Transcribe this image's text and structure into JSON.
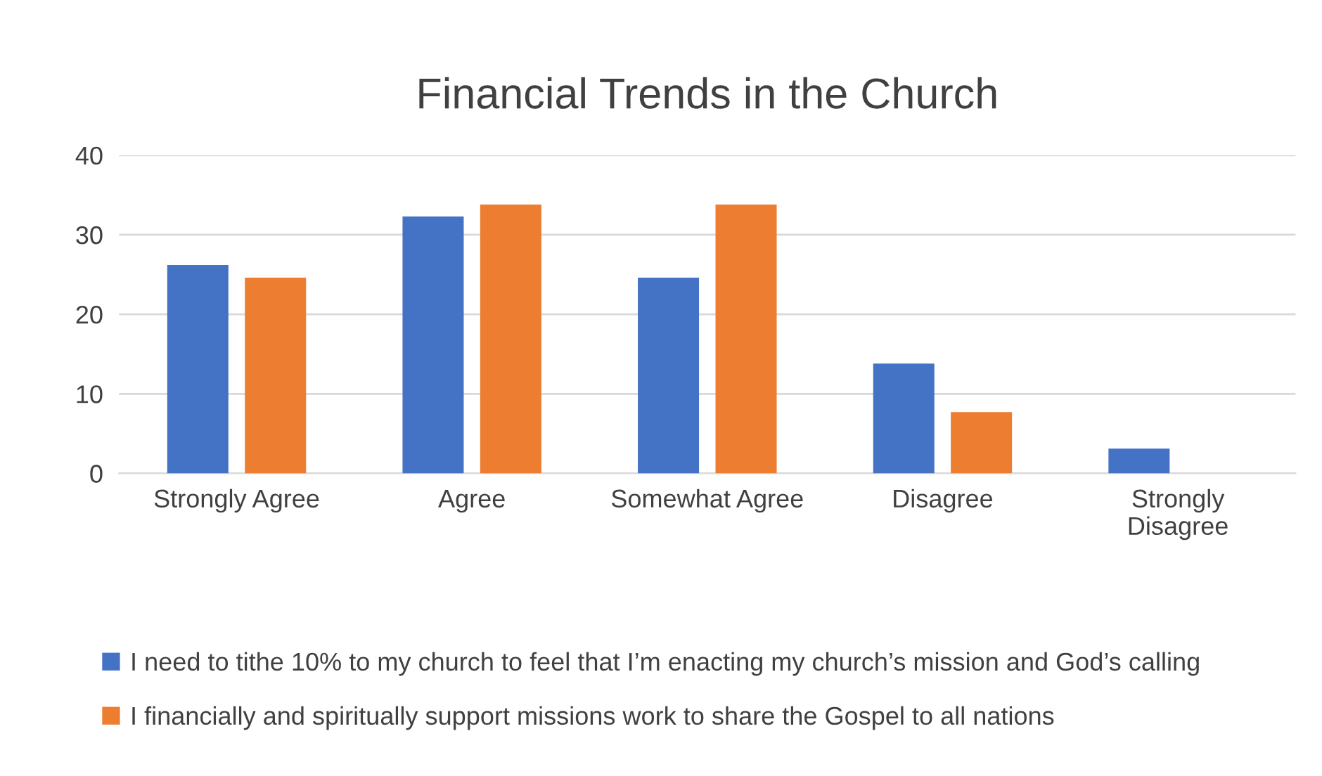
{
  "chart_data": {
    "type": "bar",
    "title": "Financial Trends in the Church",
    "categories": [
      "Strongly Agree",
      "Agree",
      "Somewhat Agree",
      "Disagree",
      "Strongly\nDisagree"
    ],
    "series": [
      {
        "name": "I need to tithe 10% to my church to feel that I’m enacting my church’s mission and God’s calling",
        "color": "#4472c4",
        "values": [
          26.2,
          32.3,
          24.6,
          13.8,
          3.1
        ]
      },
      {
        "name": "I financially and spiritually support missions work to share the Gospel to all nations",
        "color": "#ed7d31",
        "values": [
          24.6,
          33.8,
          33.8,
          7.7,
          0
        ]
      }
    ],
    "ylim": [
      0,
      40
    ],
    "yticks": [
      0,
      10,
      20,
      30,
      40
    ],
    "grid": "y",
    "legend": "bottom"
  }
}
